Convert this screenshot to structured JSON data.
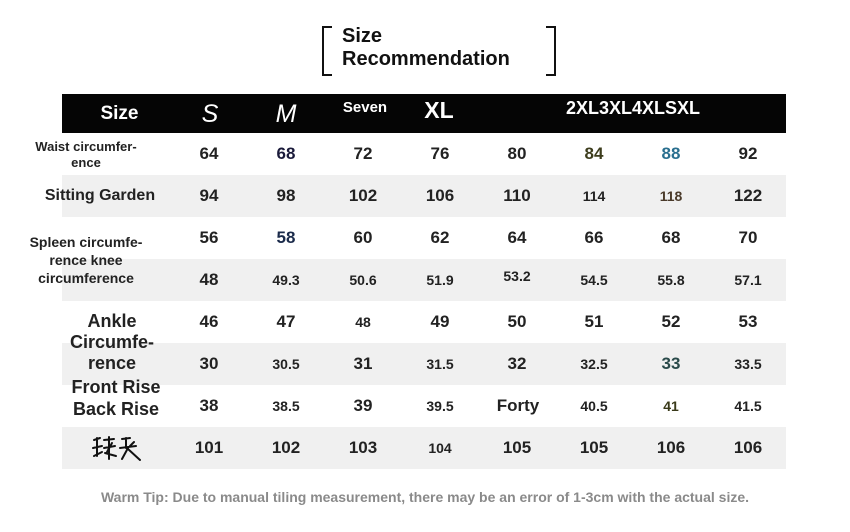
{
  "title": [
    "Size",
    "Recommendation"
  ],
  "header": {
    "size_label": "Size",
    "sizes": [
      "S",
      "M",
      "Seven",
      "XL"
    ],
    "combined": "2XL3XL4XLSXL"
  },
  "labels": {
    "waist": [
      "Waist circumfer-",
      "ence"
    ],
    "sitting": "Sitting Garden",
    "spleen": [
      "Spleen circumfe-",
      "rence knee",
      "circumference"
    ],
    "ankle": [
      "Ankle",
      "Circumfe-",
      "rence"
    ],
    "front_rise": "Front Rise",
    "back_rise": "Back Rise",
    "length_signature": "裤长"
  },
  "rows": [
    [
      "64",
      "68",
      "72",
      "76",
      "80",
      "84",
      "88",
      "92"
    ],
    [
      "94",
      "98",
      "102",
      "106",
      "110",
      "114",
      "118",
      "122"
    ],
    [
      "56",
      "58",
      "60",
      "62",
      "64",
      "66",
      "68",
      "70"
    ],
    [
      "48",
      "49.3",
      "50.6",
      "51.9",
      "53.2",
      "54.5",
      "55.8",
      "57.1"
    ],
    [
      "46",
      "47",
      "48",
      "49",
      "50",
      "51",
      "52",
      "53"
    ],
    [
      "30",
      "30.5",
      "31",
      "31.5",
      "32",
      "32.5",
      "33",
      "33.5"
    ],
    [
      "38",
      "38.5",
      "39",
      "39.5",
      "Forty",
      "40.5",
      "41",
      "41.5"
    ],
    [
      "101",
      "102",
      "103",
      "104",
      "105",
      "105",
      "106",
      "106"
    ]
  ],
  "colors": {
    "header_bg": "#050505",
    "row_shade": "#f0f0f0",
    "tip_text": "#8a8a8a",
    "accent_88": "#2a6f8f",
    "accent_84": "#3d3d1d"
  },
  "tip": "Warm Tip: Due to manual tiling measurement, there may be an error of 1-3cm with the actual size."
}
